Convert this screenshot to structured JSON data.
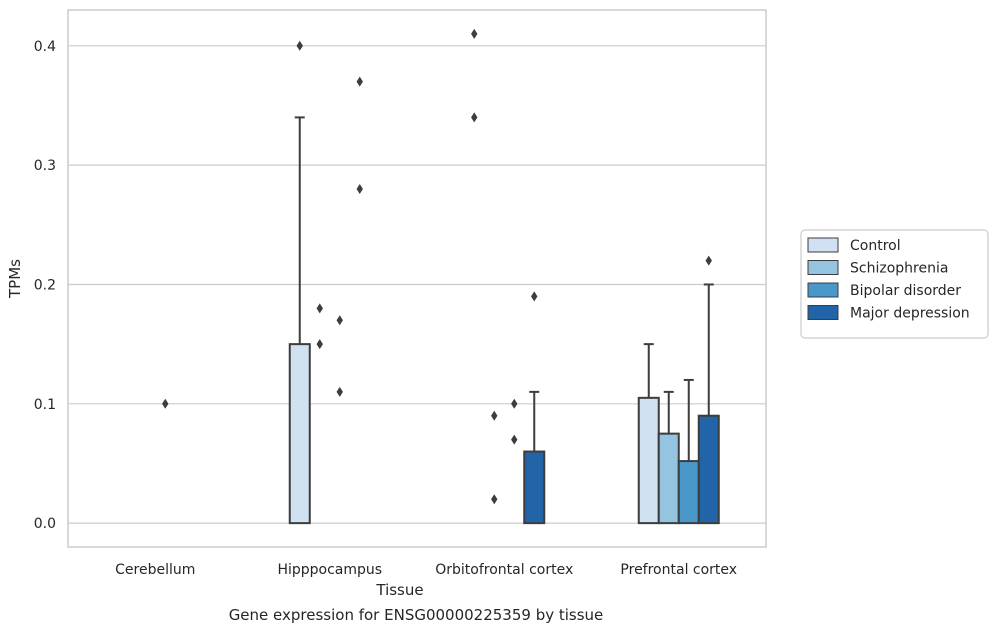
{
  "chart_data": {
    "type": "box",
    "caption": "Gene expression for ENSG00000225359 by tissue",
    "xlabel": "Tissue",
    "ylabel": "TPMs",
    "ylim": [
      -0.02,
      0.43
    ],
    "yticks": [
      0.0,
      0.1,
      0.2,
      0.3,
      0.4
    ],
    "ytick_labels": [
      "0.0",
      "0.1",
      "0.2",
      "0.3",
      "0.4"
    ],
    "grid": "horizontal",
    "legend_position": "right",
    "categories": [
      "Cerebellum",
      "Hipppocampus",
      "Orbitofrontal cortex",
      "Prefrontal cortex"
    ],
    "series": [
      {
        "name": "Control",
        "color": "#d0e1f2",
        "boxes": [
          {
            "q1": 0,
            "q3": 0,
            "whisker_low": 0,
            "whisker_high": 0,
            "outliers": []
          },
          {
            "q1": 0,
            "q3": 0.15,
            "whisker_low": 0,
            "whisker_high": 0.34,
            "outliers": [
              0.4
            ]
          },
          {
            "q1": 0,
            "q3": 0,
            "whisker_low": 0,
            "whisker_high": 0,
            "outliers": [
              0.41,
              0.34
            ]
          },
          {
            "q1": 0,
            "q3": 0.105,
            "whisker_low": 0,
            "whisker_high": 0.15,
            "outliers": []
          }
        ]
      },
      {
        "name": "Schizophrenia",
        "color": "#94c4df",
        "boxes": [
          null,
          {
            "q1": 0,
            "q3": 0,
            "whisker_low": 0,
            "whisker_high": 0,
            "outliers": [
              0.18,
              0.15
            ]
          },
          {
            "q1": 0,
            "q3": 0,
            "whisker_low": 0,
            "whisker_high": 0,
            "outliers": [
              0.09,
              0.02
            ]
          },
          {
            "q1": 0,
            "q3": 0.075,
            "whisker_low": 0,
            "whisker_high": 0.11,
            "outliers": []
          }
        ]
      },
      {
        "name": "Bipolar disorder",
        "color": "#4a98c9",
        "boxes": [
          {
            "q1": 0,
            "q3": 0,
            "whisker_low": 0,
            "whisker_high": 0,
            "outliers": [
              0.1
            ]
          },
          {
            "q1": 0,
            "q3": 0,
            "whisker_low": 0,
            "whisker_high": 0,
            "outliers": [
              0.17,
              0.11
            ]
          },
          {
            "q1": 0,
            "q3": 0,
            "whisker_low": 0,
            "whisker_high": 0,
            "outliers": [
              0.1,
              0.07
            ]
          },
          {
            "q1": 0,
            "q3": 0.052,
            "whisker_low": 0,
            "whisker_high": 0.12,
            "outliers": []
          }
        ]
      },
      {
        "name": "Major depression",
        "color": "#2264a8",
        "boxes": [
          {
            "q1": 0,
            "q3": 0,
            "whisker_low": 0,
            "whisker_high": 0,
            "outliers": []
          },
          {
            "q1": 0,
            "q3": 0,
            "whisker_low": 0,
            "whisker_high": 0,
            "outliers": [
              0.37,
              0.28
            ]
          },
          {
            "q1": 0,
            "q3": 0.06,
            "whisker_low": 0,
            "whisker_high": 0.11,
            "outliers": [
              0.19
            ]
          },
          {
            "q1": 0,
            "q3": 0.09,
            "whisker_low": 0,
            "whisker_high": 0.2,
            "outliers": [
              0.22
            ]
          }
        ]
      }
    ],
    "colors": {
      "grid": "#cccccc",
      "frame": "#cccccc",
      "edge": "#3d3d3d"
    }
  }
}
